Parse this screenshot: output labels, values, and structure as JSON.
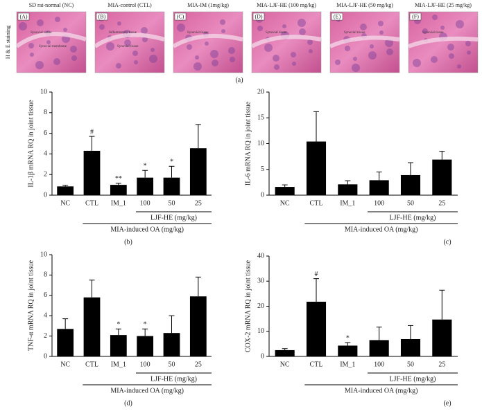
{
  "histology": {
    "side_label": "H & E staining",
    "caption": "(a)",
    "panels": [
      {
        "letter": "(A)",
        "title": "SD rat-normal (NC)",
        "notes": [
          "Synovial tissue",
          "Synovial membrane"
        ]
      },
      {
        "letter": "(B)",
        "title": "MIA-control (CTL)",
        "notes": [
          "Inflammatory tissue",
          "Synovial tissue"
        ]
      },
      {
        "letter": "(C)",
        "title": "MIA-IM (1mg/kg)",
        "notes": [
          "Synovial tissue"
        ]
      },
      {
        "letter": "(D)",
        "title": "MIA-LJF-HE (100 mg/kg)",
        "notes": [
          "Synovial tissue"
        ]
      },
      {
        "letter": "(E)",
        "title": "MIA-LJF-HE (50 mg/kg)",
        "notes": [
          "Synovial tissue"
        ]
      },
      {
        "letter": "(F)",
        "title": "MIA-LJF-HE (25 mg/kg)",
        "notes": [
          "Synovial tissue"
        ]
      }
    ]
  },
  "chart_data": [
    {
      "type": "bar",
      "panel": "(b)",
      "ylabel": "IL-1β mRNA RQ in joint tissue",
      "categories": [
        "NC",
        "CTL",
        "IM_1",
        "100",
        "50",
        "25"
      ],
      "values": [
        0.85,
        4.3,
        1.0,
        1.7,
        1.7,
        4.55
      ],
      "errors": [
        0.1,
        1.4,
        0.15,
        0.7,
        1.1,
        2.3
      ],
      "markers": [
        null,
        "#",
        "**",
        "*",
        "*",
        null
      ],
      "group_label": "LJF-HE (mg/kg)",
      "outer_label": "MIA-induced OA (mg/kg)",
      "ylim": [
        0,
        10
      ],
      "yticks": [
        0,
        2,
        4,
        6,
        8,
        10
      ],
      "color": "#000000"
    },
    {
      "type": "bar",
      "panel": "(c)",
      "ylabel": "IL-6 mRNA RQ in joint tissue",
      "categories": [
        "NC",
        "CTL",
        "IM_1",
        "100",
        "50",
        "25"
      ],
      "values": [
        1.6,
        10.4,
        2.1,
        2.9,
        3.9,
        6.9
      ],
      "errors": [
        0.4,
        5.8,
        0.7,
        1.6,
        2.4,
        1.6
      ],
      "markers": [
        null,
        null,
        null,
        null,
        null,
        null
      ],
      "group_label": "LJF-HE (mg/kg)",
      "outer_label": "MIA-induced OA (mg/kg)",
      "ylim": [
        0,
        20
      ],
      "yticks": [
        0,
        5,
        10,
        15,
        20
      ],
      "color": "#000000"
    },
    {
      "type": "bar",
      "panel": "(d)",
      "ylabel": "TNF-α mRNA RQ in joint tissue",
      "categories": [
        "NC",
        "CTL",
        "IM_1",
        "100",
        "50",
        "25"
      ],
      "values": [
        2.7,
        5.8,
        2.1,
        2.0,
        2.3,
        5.9
      ],
      "errors": [
        1.0,
        1.7,
        0.6,
        0.7,
        1.7,
        1.9
      ],
      "markers": [
        null,
        null,
        "*",
        "*",
        null,
        null
      ],
      "group_label": "LJF-HE (mg/kg)",
      "outer_label": "MIA-induced OA (mg/kg)",
      "ylim": [
        0,
        10
      ],
      "yticks": [
        0,
        2,
        4,
        6,
        8,
        10
      ],
      "color": "#000000"
    },
    {
      "type": "bar",
      "panel": "(e)",
      "ylabel": "COX-2 mRNA RQ in joint tissue",
      "categories": [
        "NC",
        "CTL",
        "IM_1",
        "100",
        "50",
        "25"
      ],
      "values": [
        2.5,
        21.8,
        4.3,
        6.5,
        6.9,
        14.7
      ],
      "errors": [
        0.6,
        9.2,
        1.2,
        5.2,
        5.4,
        11.7
      ],
      "markers": [
        null,
        "#",
        "*",
        null,
        null,
        null
      ],
      "group_label": "LJF-HE (mg/kg)",
      "outer_label": "MIA-induced OA (mg/kg)",
      "ylim": [
        0,
        40
      ],
      "yticks": [
        0,
        10,
        20,
        30,
        40
      ],
      "color": "#000000"
    }
  ]
}
